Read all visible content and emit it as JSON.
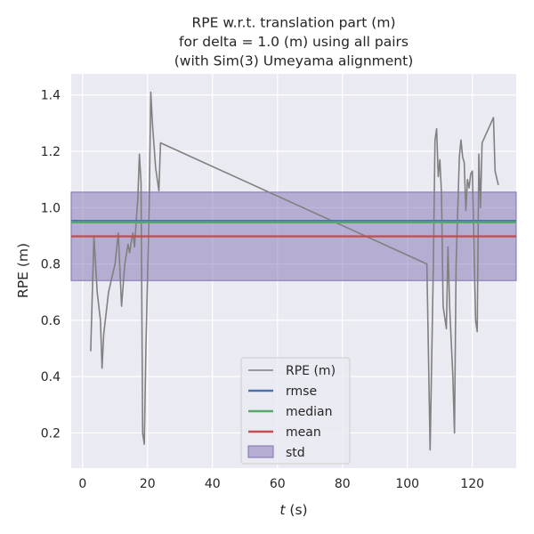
{
  "chart_data": {
    "type": "line",
    "title_lines": [
      "RPE w.r.t. translation part (m)",
      "for delta = 1.0 (m) using all pairs",
      "(with Sim(3) Umeyama alignment)"
    ],
    "xlabel_italic": "t",
    "xlabel_rest": " (s)",
    "ylabel": "RPE (m)",
    "xlim": [
      -3.5,
      133.5
    ],
    "ylim": [
      0.075,
      1.475
    ],
    "xticks": [
      0,
      20,
      40,
      60,
      80,
      100,
      120
    ],
    "yticks": [
      0.2,
      0.4,
      0.6,
      0.8,
      1.0,
      1.2,
      1.4
    ],
    "ytick_labels": [
      "0.2",
      "0.4",
      "0.6",
      "0.8",
      "1.0",
      "1.2",
      "1.4"
    ],
    "grid": true,
    "legend_position": "lower-center",
    "series": [
      {
        "name": "RPE (m)",
        "color": "#808080",
        "x": [
          2.5,
          3.5,
          4.5,
          5.5,
          6.0,
          6.5,
          8.0,
          10.0,
          11.0,
          12.0,
          13.0,
          14.0,
          14.5,
          15.0,
          15.5,
          16.0,
          16.5,
          17.0,
          17.5,
          18.0,
          18.5,
          19.0,
          19.5,
          20.5,
          21.0,
          21.5,
          22.5,
          23.5,
          24.0,
          106.0,
          107.0,
          108.0,
          108.5,
          109.0,
          109.5,
          110.0,
          110.5,
          111.0,
          112.0,
          112.5,
          113.0,
          114.0,
          114.5,
          115.0,
          116.0,
          116.5,
          117.0,
          117.5,
          118.0,
          118.5,
          119.0,
          119.5,
          120.0,
          121.0,
          121.5,
          122.0,
          122.5,
          123.0,
          126.5,
          127.0,
          128.0
        ],
        "y": [
          0.49,
          0.9,
          0.7,
          0.6,
          0.43,
          0.55,
          0.7,
          0.8,
          0.91,
          0.65,
          0.8,
          0.87,
          0.84,
          0.88,
          0.91,
          0.86,
          0.95,
          1.03,
          1.19,
          1.09,
          0.2,
          0.16,
          0.5,
          1.0,
          1.41,
          1.3,
          1.14,
          1.06,
          1.23,
          0.8,
          0.14,
          0.8,
          1.24,
          1.28,
          1.11,
          1.17,
          1.05,
          0.65,
          0.57,
          0.86,
          0.65,
          0.4,
          0.2,
          0.8,
          1.18,
          1.24,
          1.18,
          1.16,
          0.99,
          1.1,
          1.07,
          1.12,
          1.13,
          0.6,
          0.56,
          1.19,
          1.0,
          1.23,
          1.32,
          1.13,
          1.08
        ]
      },
      {
        "name": "rmse",
        "color": "#4c72b0",
        "value": 0.953
      },
      {
        "name": "median",
        "color": "#55a868",
        "value": 0.948
      },
      {
        "name": "mean",
        "color": "#c44e52",
        "value": 0.898
      },
      {
        "name": "std",
        "color": "#8172b2",
        "range": [
          0.741,
          1.055
        ]
      }
    ]
  }
}
